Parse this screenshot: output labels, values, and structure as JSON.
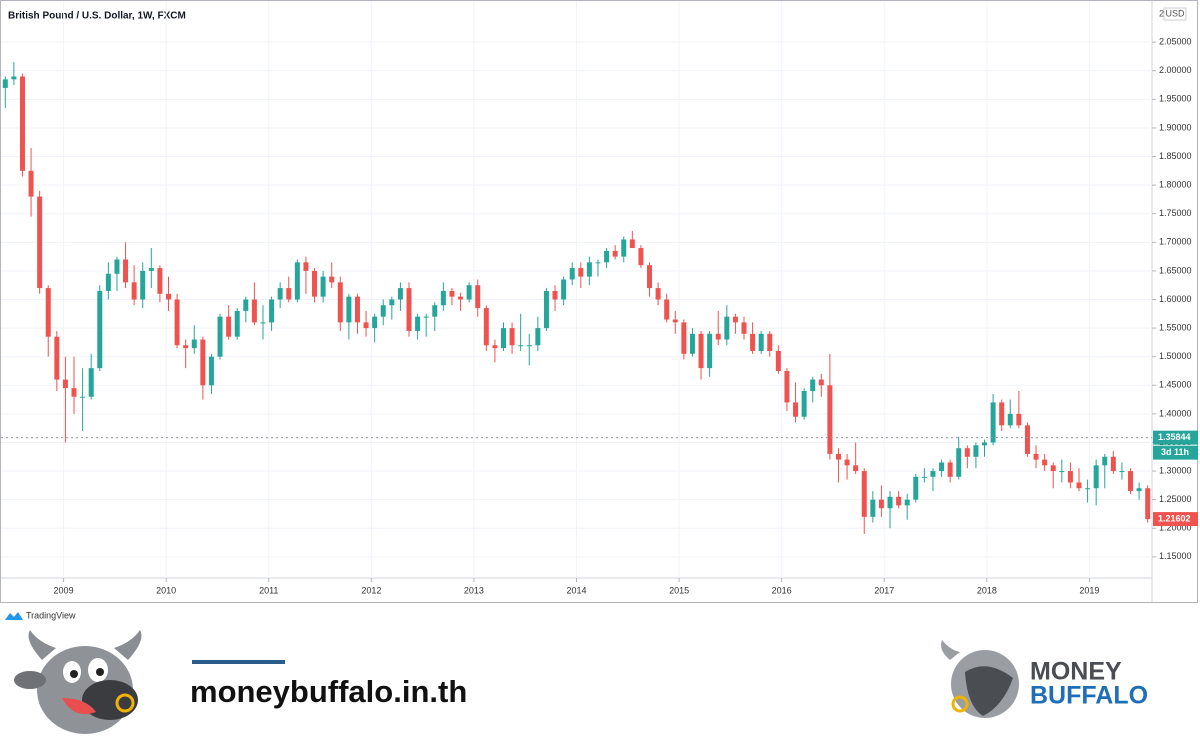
{
  "chart_data": {
    "type": "candlestick",
    "title": "British Pound / U.S. Dollar, 1W, FXCM",
    "currency": "USD",
    "scale_badge": "2",
    "up_color": "#26a69a",
    "down_color": "#ef5350",
    "grid": true,
    "xlim": [
      2008.39,
      2019.61
    ],
    "xticks": [
      2009,
      2010,
      2011,
      2012,
      2013,
      2014,
      2015,
      2016,
      2017,
      2018,
      2019
    ],
    "ylim": [
      1.113,
      2.115
    ],
    "yticks": [
      {
        "value": 1.15,
        "label": "1.15000"
      },
      {
        "value": 1.2,
        "label": "1.20000"
      },
      {
        "value": 1.25,
        "label": "1.25000"
      },
      {
        "value": 1.3,
        "label": "1.30000"
      },
      {
        "value": 1.35,
        "label": "1.35000"
      },
      {
        "value": 1.4,
        "label": "1.40000"
      },
      {
        "value": 1.45,
        "label": "1.45000"
      },
      {
        "value": 1.5,
        "label": "1.50000"
      },
      {
        "value": 1.55,
        "label": "1.55000"
      },
      {
        "value": 1.6,
        "label": "1.60000"
      },
      {
        "value": 1.65,
        "label": "1.65000"
      },
      {
        "value": 1.7,
        "label": "1.70000"
      },
      {
        "value": 1.75,
        "label": "1.75000"
      },
      {
        "value": 1.8,
        "label": "1.80000"
      },
      {
        "value": 1.85,
        "label": "1.85000"
      },
      {
        "value": 1.9,
        "label": "1.90000"
      },
      {
        "value": 1.95,
        "label": "1.95000"
      },
      {
        "value": 2.0,
        "label": "2.00000"
      },
      {
        "value": 2.05,
        "label": "2.05000"
      }
    ],
    "crosshair_price": 1.35844,
    "countdown": "3d 11h",
    "ohlc": [
      [
        1.97,
        1.99,
        1.935,
        1.985
      ],
      [
        1.985,
        2.015,
        1.975,
        1.99
      ],
      [
        1.99,
        1.995,
        1.815,
        1.825
      ],
      [
        1.825,
        1.865,
        1.745,
        1.78
      ],
      [
        1.78,
        1.79,
        1.61,
        1.62
      ],
      [
        1.62,
        1.625,
        1.5,
        1.535
      ],
      [
        1.535,
        1.545,
        1.44,
        1.46
      ],
      [
        1.46,
        1.5,
        1.35,
        1.445
      ],
      [
        1.445,
        1.5,
        1.4,
        1.43
      ],
      [
        1.43,
        1.48,
        1.37,
        1.43
      ],
      [
        1.43,
        1.505,
        1.425,
        1.48
      ],
      [
        1.48,
        1.625,
        1.475,
        1.615
      ],
      [
        1.615,
        1.665,
        1.6,
        1.645
      ],
      [
        1.645,
        1.675,
        1.615,
        1.67
      ],
      [
        1.67,
        1.7,
        1.62,
        1.63
      ],
      [
        1.63,
        1.66,
        1.59,
        1.6
      ],
      [
        1.6,
        1.665,
        1.585,
        1.65
      ],
      [
        1.65,
        1.69,
        1.62,
        1.655
      ],
      [
        1.655,
        1.66,
        1.595,
        1.61
      ],
      [
        1.61,
        1.64,
        1.58,
        1.6
      ],
      [
        1.6,
        1.61,
        1.515,
        1.52
      ],
      [
        1.52,
        1.53,
        1.48,
        1.515
      ],
      [
        1.515,
        1.555,
        1.505,
        1.53
      ],
      [
        1.53,
        1.535,
        1.425,
        1.45
      ],
      [
        1.45,
        1.505,
        1.435,
        1.5
      ],
      [
        1.5,
        1.575,
        1.495,
        1.57
      ],
      [
        1.57,
        1.59,
        1.53,
        1.535
      ],
      [
        1.535,
        1.585,
        1.53,
        1.58
      ],
      [
        1.58,
        1.605,
        1.56,
        1.6
      ],
      [
        1.6,
        1.63,
        1.555,
        1.56
      ],
      [
        1.56,
        1.59,
        1.53,
        1.56
      ],
      [
        1.56,
        1.605,
        1.545,
        1.6
      ],
      [
        1.6,
        1.63,
        1.585,
        1.62
      ],
      [
        1.62,
        1.64,
        1.595,
        1.6
      ],
      [
        1.6,
        1.67,
        1.595,
        1.665
      ],
      [
        1.665,
        1.675,
        1.61,
        1.65
      ],
      [
        1.65,
        1.655,
        1.595,
        1.605
      ],
      [
        1.605,
        1.65,
        1.595,
        1.64
      ],
      [
        1.64,
        1.665,
        1.62,
        1.63
      ],
      [
        1.63,
        1.64,
        1.545,
        1.56
      ],
      [
        1.56,
        1.61,
        1.53,
        1.605
      ],
      [
        1.605,
        1.61,
        1.54,
        1.56
      ],
      [
        1.56,
        1.58,
        1.535,
        1.55
      ],
      [
        1.55,
        1.575,
        1.525,
        1.57
      ],
      [
        1.57,
        1.6,
        1.555,
        1.59
      ],
      [
        1.59,
        1.605,
        1.565,
        1.6
      ],
      [
        1.6,
        1.63,
        1.58,
        1.62
      ],
      [
        1.62,
        1.63,
        1.535,
        1.545
      ],
      [
        1.545,
        1.575,
        1.53,
        1.57
      ],
      [
        1.57,
        1.575,
        1.535,
        1.57
      ],
      [
        1.57,
        1.595,
        1.545,
        1.59
      ],
      [
        1.59,
        1.63,
        1.58,
        1.615
      ],
      [
        1.615,
        1.62,
        1.59,
        1.605
      ],
      [
        1.605,
        1.612,
        1.58,
        1.6
      ],
      [
        1.6,
        1.63,
        1.595,
        1.625
      ],
      [
        1.625,
        1.635,
        1.57,
        1.585
      ],
      [
        1.585,
        1.59,
        1.51,
        1.52
      ],
      [
        1.52,
        1.53,
        1.49,
        1.515
      ],
      [
        1.515,
        1.56,
        1.51,
        1.55
      ],
      [
        1.55,
        1.56,
        1.505,
        1.52
      ],
      [
        1.52,
        1.575,
        1.51,
        1.52
      ],
      [
        1.52,
        1.54,
        1.485,
        1.52
      ],
      [
        1.52,
        1.57,
        1.51,
        1.55
      ],
      [
        1.55,
        1.62,
        1.545,
        1.615
      ],
      [
        1.615,
        1.625,
        1.58,
        1.6
      ],
      [
        1.6,
        1.64,
        1.59,
        1.635
      ],
      [
        1.635,
        1.665,
        1.625,
        1.655
      ],
      [
        1.655,
        1.665,
        1.62,
        1.64
      ],
      [
        1.64,
        1.675,
        1.625,
        1.665
      ],
      [
        1.665,
        1.67,
        1.64,
        1.665
      ],
      [
        1.665,
        1.69,
        1.655,
        1.685
      ],
      [
        1.685,
        1.695,
        1.67,
        1.675
      ],
      [
        1.675,
        1.71,
        1.665,
        1.705
      ],
      [
        1.705,
        1.72,
        1.69,
        1.69
      ],
      [
        1.69,
        1.695,
        1.655,
        1.66
      ],
      [
        1.66,
        1.665,
        1.605,
        1.62
      ],
      [
        1.62,
        1.63,
        1.59,
        1.6
      ],
      [
        1.6,
        1.61,
        1.56,
        1.565
      ],
      [
        1.565,
        1.58,
        1.54,
        1.56
      ],
      [
        1.56,
        1.565,
        1.495,
        1.505
      ],
      [
        1.505,
        1.55,
        1.5,
        1.54
      ],
      [
        1.54,
        1.545,
        1.46,
        1.48
      ],
      [
        1.48,
        1.545,
        1.465,
        1.54
      ],
      [
        1.54,
        1.58,
        1.52,
        1.53
      ],
      [
        1.53,
        1.59,
        1.52,
        1.57
      ],
      [
        1.57,
        1.575,
        1.54,
        1.56
      ],
      [
        1.56,
        1.57,
        1.53,
        1.54
      ],
      [
        1.54,
        1.56,
        1.505,
        1.51
      ],
      [
        1.51,
        1.545,
        1.505,
        1.54
      ],
      [
        1.54,
        1.545,
        1.5,
        1.51
      ],
      [
        1.51,
        1.52,
        1.47,
        1.475
      ],
      [
        1.475,
        1.48,
        1.405,
        1.42
      ],
      [
        1.42,
        1.455,
        1.385,
        1.395
      ],
      [
        1.395,
        1.445,
        1.39,
        1.44
      ],
      [
        1.44,
        1.465,
        1.42,
        1.46
      ],
      [
        1.46,
        1.47,
        1.43,
        1.45
      ],
      [
        1.45,
        1.505,
        1.32,
        1.33
      ],
      [
        1.33,
        1.34,
        1.28,
        1.32
      ],
      [
        1.32,
        1.33,
        1.285,
        1.31
      ],
      [
        1.31,
        1.35,
        1.295,
        1.3
      ],
      [
        1.3,
        1.305,
        1.19,
        1.22
      ],
      [
        1.22,
        1.265,
        1.21,
        1.25
      ],
      [
        1.25,
        1.275,
        1.22,
        1.235
      ],
      [
        1.235,
        1.265,
        1.2,
        1.255
      ],
      [
        1.255,
        1.265,
        1.235,
        1.24
      ],
      [
        1.24,
        1.26,
        1.215,
        1.25
      ],
      [
        1.25,
        1.295,
        1.245,
        1.29
      ],
      [
        1.29,
        1.305,
        1.28,
        1.29
      ],
      [
        1.29,
        1.305,
        1.265,
        1.3
      ],
      [
        1.3,
        1.32,
        1.29,
        1.315
      ],
      [
        1.315,
        1.32,
        1.28,
        1.29
      ],
      [
        1.29,
        1.36,
        1.285,
        1.34
      ],
      [
        1.34,
        1.345,
        1.305,
        1.325
      ],
      [
        1.325,
        1.35,
        1.305,
        1.345
      ],
      [
        1.345,
        1.355,
        1.325,
        1.35
      ],
      [
        1.35,
        1.435,
        1.345,
        1.42
      ],
      [
        1.42,
        1.425,
        1.37,
        1.38
      ],
      [
        1.38,
        1.425,
        1.375,
        1.4
      ],
      [
        1.4,
        1.44,
        1.375,
        1.38
      ],
      [
        1.38,
        1.385,
        1.325,
        1.33
      ],
      [
        1.33,
        1.345,
        1.305,
        1.32
      ],
      [
        1.32,
        1.33,
        1.3,
        1.31
      ],
      [
        1.31,
        1.315,
        1.27,
        1.3
      ],
      [
        1.3,
        1.32,
        1.28,
        1.3
      ],
      [
        1.3,
        1.315,
        1.27,
        1.28
      ],
      [
        1.28,
        1.305,
        1.265,
        1.27
      ],
      [
        1.27,
        1.285,
        1.245,
        1.27
      ],
      [
        1.27,
        1.32,
        1.24,
        1.31
      ],
      [
        1.31,
        1.33,
        1.27,
        1.325
      ],
      [
        1.325,
        1.335,
        1.295,
        1.3
      ],
      [
        1.3,
        1.315,
        1.285,
        1.3
      ],
      [
        1.3,
        1.305,
        1.26,
        1.265
      ],
      [
        1.265,
        1.28,
        1.25,
        1.27
      ],
      [
        1.27,
        1.275,
        1.21,
        1.21602
      ]
    ]
  },
  "footer": {
    "provider": "TradingView",
    "website": "moneybuffalo.in.th",
    "brand_line1": "MONEY",
    "brand_line2": "BUFFALO"
  }
}
